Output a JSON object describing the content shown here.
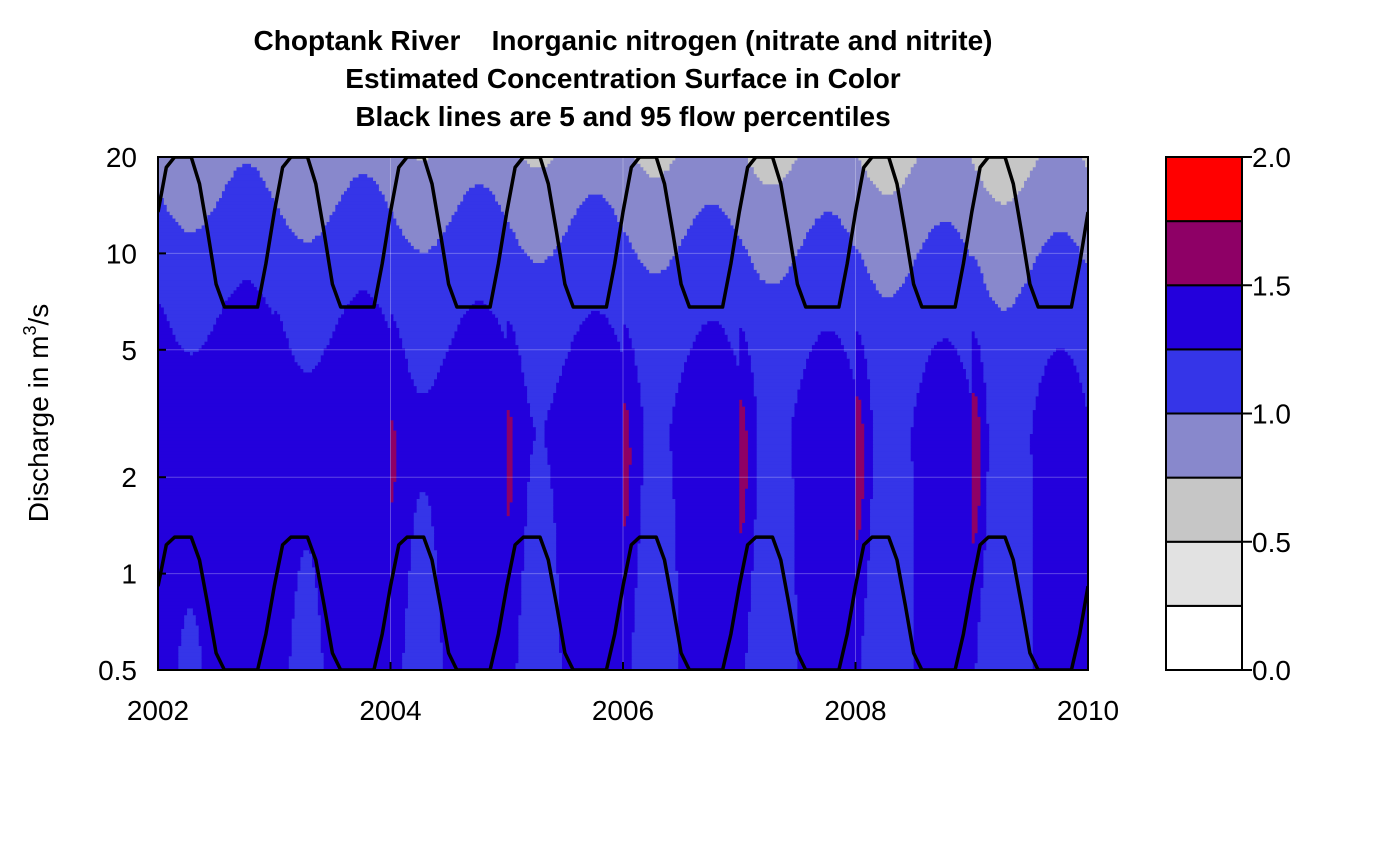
{
  "chart_data": {
    "type": "heatmap",
    "title": [
      "Choptank River    Inorganic nitrogen (nitrate and nitrite)",
      "Estimated Concentration Surface in Color",
      "Black lines are 5 and 95 flow percentiles"
    ],
    "xlabel": "",
    "ylabel": "Discharge in m³/s",
    "ylabel_parts": {
      "pre": "Discharge in m",
      "sup": "3",
      "post": "/s"
    },
    "x_range": [
      2002,
      2010
    ],
    "x_ticks": [
      2002,
      2004,
      2006,
      2008,
      2010
    ],
    "x_tick_labels": [
      "2002",
      "2004",
      "2006",
      "2008",
      "2010"
    ],
    "y_scale": "log",
    "y_range": [
      0.5,
      20
    ],
    "y_ticks": [
      0.5,
      1,
      2,
      5,
      10,
      20
    ],
    "y_tick_labels": [
      "0.5",
      "1",
      "2",
      "5",
      "10",
      "20"
    ],
    "grid": true,
    "legend": {
      "placement": "right",
      "type": "colorbar",
      "ticks": [
        0.0,
        0.5,
        1.0,
        1.5,
        2.0
      ],
      "tick_labels": [
        "0.0",
        "0.5",
        "1.0",
        "1.5",
        "2.0"
      ],
      "levels": [
        {
          "from": 0.0,
          "to": 0.25,
          "color": "#ffffff"
        },
        {
          "from": 0.25,
          "to": 0.5,
          "color": "#e2e2e2"
        },
        {
          "from": 0.5,
          "to": 0.75,
          "color": "#c6c6c6"
        },
        {
          "from": 0.75,
          "to": 1.0,
          "color": "#8888cc"
        },
        {
          "from": 1.0,
          "to": 1.25,
          "color": "#3535e8"
        },
        {
          "from": 1.25,
          "to": 1.5,
          "color": "#2300dc"
        },
        {
          "from": 1.5,
          "to": 1.75,
          "color": "#8e0066"
        },
        {
          "from": 1.75,
          "to": 2.0,
          "color": "#ff0000"
        }
      ]
    },
    "series": [
      {
        "name": "95 flow percentile",
        "min": 6.8,
        "max": 20,
        "peak_time": 0.2,
        "trough_time": 0.7
      },
      {
        "name": "5 flow percentile",
        "min": 0.5,
        "max": 1.3,
        "peak_time": 0.2,
        "trough_time": 0.7
      }
    ]
  }
}
